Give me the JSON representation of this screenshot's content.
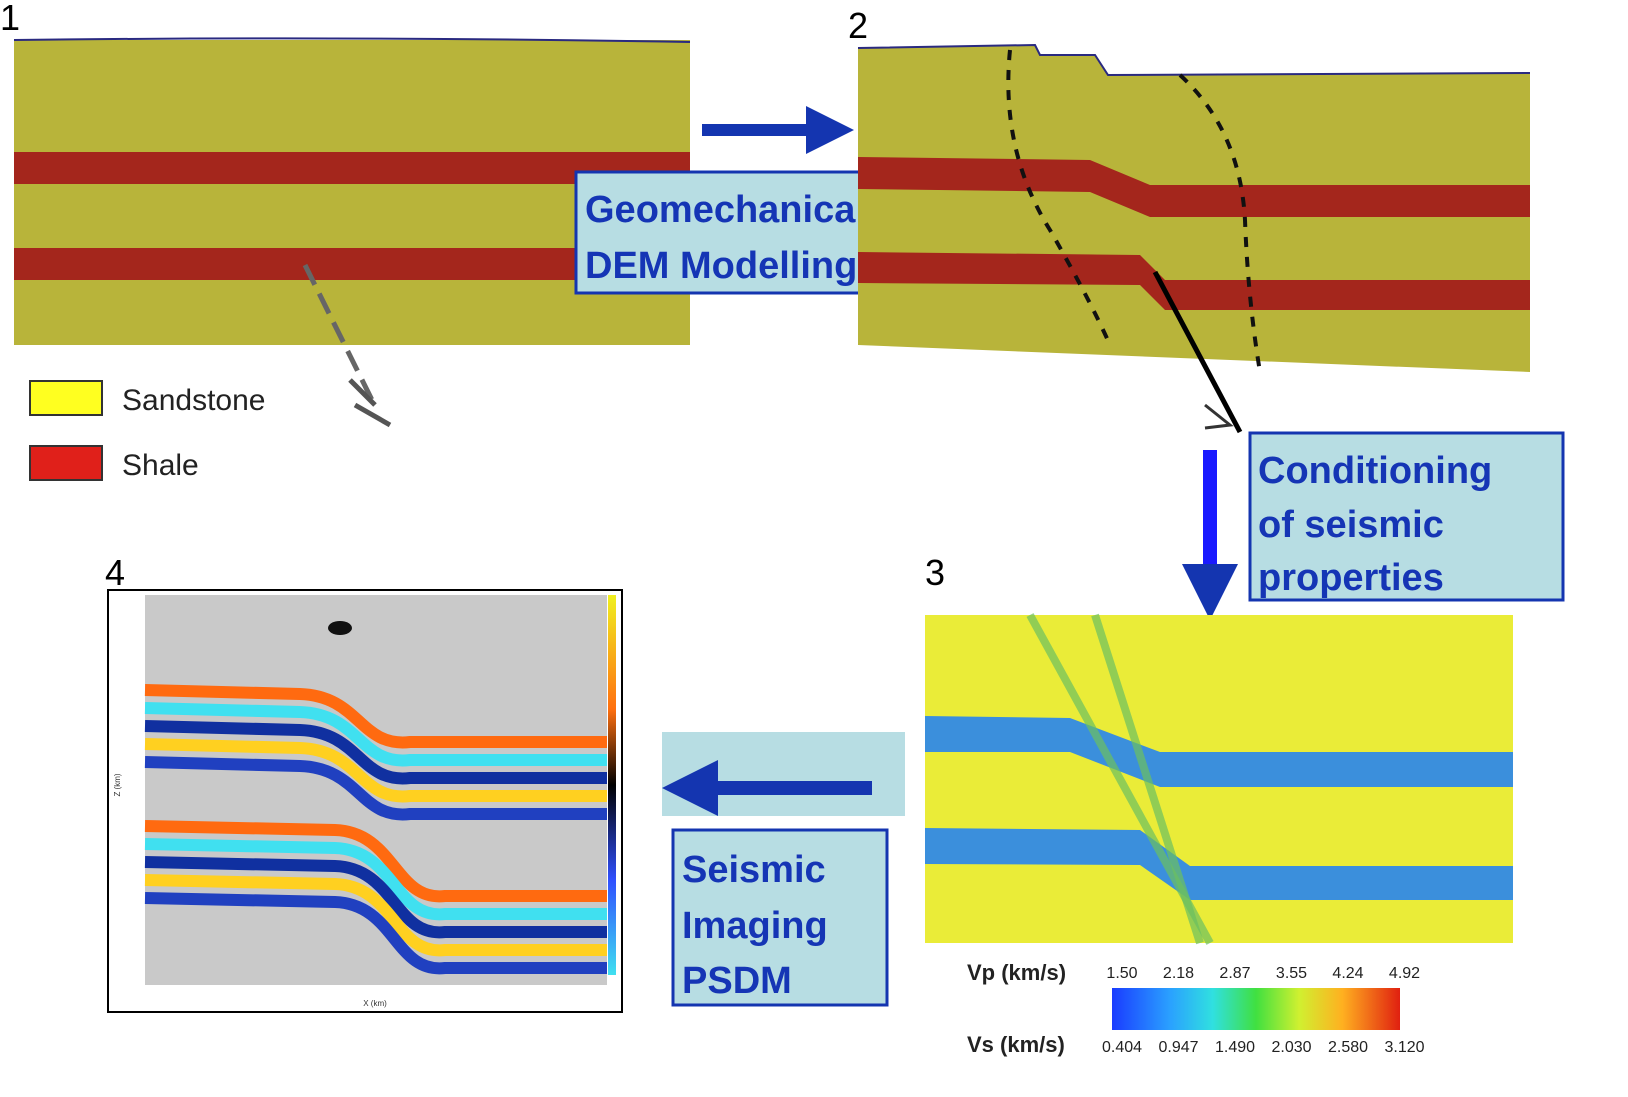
{
  "panels": {
    "p1": "1",
    "p2": "2",
    "p3": "3",
    "p4": "4"
  },
  "legend": [
    {
      "label": "Sandstone"
    },
    {
      "label": "Shale"
    }
  ],
  "boxes": {
    "geomechanical": [
      "Geomechanical",
      "DEM Modelling"
    ],
    "conditioning": [
      "Conditioning",
      "of seismic",
      "properties"
    ],
    "imaging": [
      "Seismic",
      "Imaging",
      "PSDM"
    ]
  },
  "colorbar": {
    "vp_label": "Vp (km/s)",
    "vp_ticks": [
      "1.50",
      "2.18",
      "2.87",
      "3.55",
      "4.24",
      "4.92"
    ],
    "vs_label": "Vs (km/s)",
    "vs_ticks": [
      "0.404",
      "0.947",
      "1.490",
      "2.030",
      "2.580",
      "3.120"
    ]
  },
  "panel_4_axes": {
    "x_label": "X (km)",
    "y_label": "Z (km)"
  }
}
